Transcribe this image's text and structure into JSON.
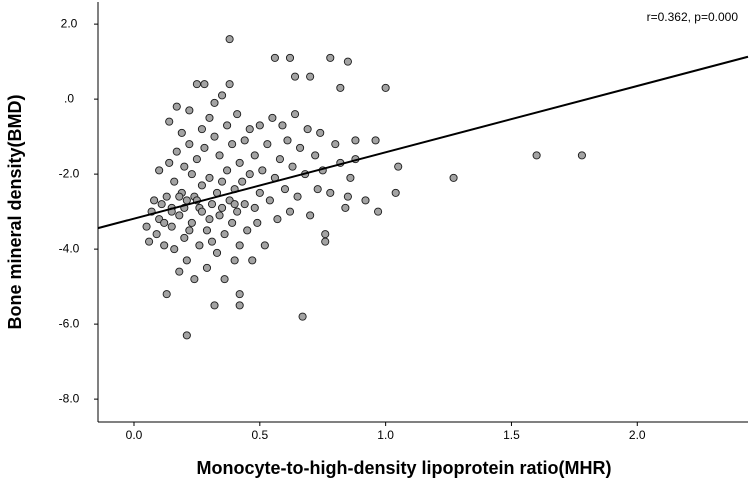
{
  "chart_data": {
    "type": "scatter",
    "annotation": "r=0.362, p=0.000",
    "x_label": "Monocyte-to-high-density lipoprotein ratio(MHR)",
    "y_label": "Bone mineral density(BMD)",
    "xlim": [
      -0.143,
      2.44
    ],
    "ylim": [
      -8.61,
      2.59
    ],
    "xticks": [
      {
        "value": 0,
        "label": "0.0"
      },
      0.5,
      {
        "value": 1,
        "label": "1.0"
      },
      1.5,
      {
        "value": 2,
        "label": "2.0"
      }
    ],
    "yticks": [
      {
        "value": 2,
        "label": "2.0"
      },
      {
        "value": 0,
        "label": ".0"
      },
      {
        "value": -2,
        "label": "-2.0"
      },
      {
        "value": -4,
        "label": "-4.0"
      },
      {
        "value": -6,
        "label": "-6.0"
      },
      {
        "value": -8,
        "label": "-8.0"
      }
    ],
    "color": "#a3a3a3",
    "trend_line": {
      "x": [
        -0.143,
        2.44
      ],
      "y": [
        -3.44,
        1.13
      ]
    },
    "x": [
      0.38,
      0.56,
      0.62,
      0.78,
      0.85,
      1.0,
      0.82,
      0.64,
      0.7,
      1.6,
      1.78,
      1.27,
      1.05,
      1.04,
      0.97,
      0.67,
      0.21,
      0.42,
      0.32,
      0.42,
      0.13,
      0.76,
      0.76,
      0.96,
      0.88,
      0.88,
      0.92,
      0.85,
      0.05,
      0.06,
      0.07,
      0.08,
      0.09,
      0.1,
      0.1,
      0.11,
      0.12,
      0.13,
      0.14,
      0.14,
      0.15,
      0.15,
      0.16,
      0.16,
      0.17,
      0.17,
      0.18,
      0.18,
      0.19,
      0.19,
      0.2,
      0.2,
      0.21,
      0.21,
      0.22,
      0.22,
      0.23,
      0.23,
      0.24,
      0.24,
      0.25,
      0.25,
      0.26,
      0.26,
      0.27,
      0.27,
      0.28,
      0.28,
      0.29,
      0.29,
      0.3,
      0.3,
      0.31,
      0.31,
      0.32,
      0.32,
      0.33,
      0.33,
      0.34,
      0.34,
      0.35,
      0.35,
      0.36,
      0.36,
      0.37,
      0.37,
      0.38,
      0.38,
      0.39,
      0.39,
      0.4,
      0.4,
      0.41,
      0.41,
      0.42,
      0.42,
      0.43,
      0.44,
      0.44,
      0.45,
      0.46,
      0.46,
      0.47,
      0.48,
      0.48,
      0.49,
      0.5,
      0.5,
      0.51,
      0.52,
      0.53,
      0.54,
      0.55,
      0.56,
      0.57,
      0.58,
      0.59,
      0.6,
      0.61,
      0.62,
      0.63,
      0.64,
      0.65,
      0.66,
      0.68,
      0.69,
      0.7,
      0.72,
      0.73,
      0.74,
      0.75,
      0.78,
      0.8,
      0.82,
      0.84,
      0.86,
      0.15,
      0.2,
      0.25,
      0.3,
      0.18,
      0.22,
      0.27,
      0.12,
      0.35,
      0.4
    ],
    "y": [
      1.6,
      1.1,
      1.1,
      1.1,
      1.0,
      0.3,
      0.3,
      0.6,
      0.6,
      -1.5,
      -1.5,
      -2.1,
      -1.8,
      -2.5,
      -3.0,
      -5.8,
      -6.3,
      -5.2,
      -5.5,
      -5.5,
      -5.2,
      -3.6,
      -3.8,
      -1.1,
      -1.1,
      -1.6,
      -2.7,
      -2.6,
      -3.4,
      -3.8,
      -3.0,
      -2.7,
      -3.6,
      -1.9,
      -3.2,
      -2.8,
      -3.9,
      -2.6,
      -0.6,
      -1.7,
      -2.9,
      -3.4,
      -4.0,
      -2.2,
      -0.2,
      -1.4,
      -3.1,
      -4.6,
      -2.5,
      -0.9,
      -1.8,
      -3.7,
      -2.7,
      -4.3,
      -0.3,
      -1.2,
      -2.0,
      -3.3,
      -4.8,
      -2.6,
      0.4,
      -1.6,
      -2.9,
      -3.9,
      -0.8,
      -2.3,
      0.4,
      -1.3,
      -3.5,
      -4.5,
      -0.5,
      -2.1,
      -2.8,
      -3.8,
      -1.0,
      -0.1,
      -2.5,
      -4.1,
      -1.5,
      -3.1,
      0.1,
      -2.2,
      -3.6,
      -4.8,
      -0.7,
      -1.9,
      -2.7,
      0.4,
      -3.3,
      -1.2,
      -2.4,
      -4.3,
      -0.4,
      -3.0,
      -1.7,
      -3.9,
      -2.2,
      -1.1,
      -2.8,
      -3.5,
      -0.8,
      -2.0,
      -4.3,
      -1.5,
      -2.9,
      -3.3,
      -0.7,
      -2.5,
      -1.9,
      -3.9,
      -1.2,
      -2.7,
      -0.5,
      -2.1,
      -3.2,
      -1.6,
      -0.7,
      -2.4,
      -1.1,
      -3.0,
      -1.8,
      -0.4,
      -2.6,
      -1.3,
      -2.0,
      -0.8,
      -3.1,
      -1.5,
      -2.4,
      -0.9,
      -1.9,
      -2.5,
      -1.2,
      -1.7,
      -2.9,
      -2.1,
      -3.0,
      -2.9,
      -2.7,
      -3.2,
      -2.6,
      -3.5,
      -3.0,
      -3.3,
      -2.9,
      -2.8
    ]
  }
}
